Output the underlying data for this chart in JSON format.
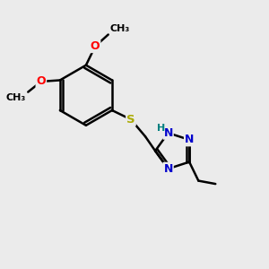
{
  "background_color": "#ebebeb",
  "bond_color": "#000000",
  "bond_width": 1.8,
  "figsize": [
    3.0,
    3.0
  ],
  "dpi": 100,
  "atom_colors": {
    "O": "#ff0000",
    "N": "#0000cc",
    "S": "#aaaa00",
    "H": "#008080",
    "C": "#000000"
  },
  "font_size": 9.0,
  "font_size_small": 8.0
}
